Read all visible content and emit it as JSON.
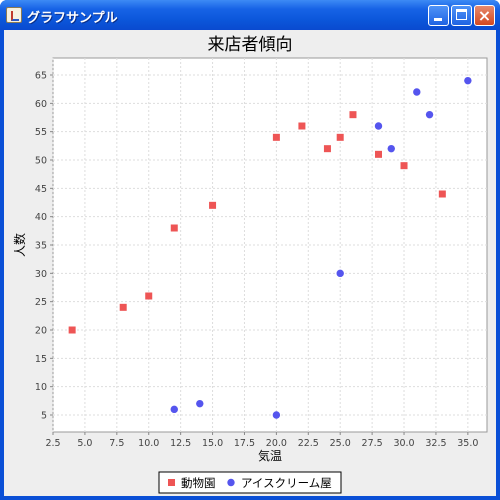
{
  "window": {
    "title": "グラフサンプル",
    "controls": {
      "minimize": "minimize",
      "maximize": "maximize",
      "close": "close"
    }
  },
  "chart_data": {
    "type": "scatter",
    "title": "来店者傾向",
    "xlabel": "気温",
    "ylabel": "人数",
    "xlim": [
      2.5,
      36.5
    ],
    "ylim": [
      2,
      68
    ],
    "x_ticks": [
      2.5,
      5,
      7.5,
      10,
      12.5,
      15,
      17.5,
      20,
      22.5,
      25,
      27.5,
      30,
      32.5,
      35
    ],
    "x_tick_labels": [
      "2.5",
      "5.0",
      "7.5",
      "10.0",
      "12.5",
      "15.0",
      "17.5",
      "20.0",
      "22.5",
      "25.0",
      "27.5",
      "30.0",
      "32.5",
      "35.0"
    ],
    "y_ticks": [
      5,
      10,
      15,
      20,
      25,
      30,
      35,
      40,
      45,
      50,
      55,
      60,
      65
    ],
    "y_tick_labels": [
      "5",
      "10",
      "15",
      "20",
      "25",
      "30",
      "35",
      "40",
      "45",
      "50",
      "55",
      "60",
      "65"
    ],
    "grid": true,
    "legend_position": "bottom",
    "series": [
      {
        "name": "動物園",
        "marker": "square",
        "color": "#ee5555",
        "points": [
          [
            4,
            20
          ],
          [
            8,
            24
          ],
          [
            10,
            26
          ],
          [
            12,
            38
          ],
          [
            15,
            42
          ],
          [
            20,
            54
          ],
          [
            22,
            56
          ],
          [
            24,
            52
          ],
          [
            25,
            54
          ],
          [
            26,
            58
          ],
          [
            28,
            51
          ],
          [
            30,
            49
          ],
          [
            33,
            44
          ]
        ]
      },
      {
        "name": "アイスクリーム屋",
        "marker": "circle",
        "color": "#5555ee",
        "points": [
          [
            12,
            6
          ],
          [
            14,
            7
          ],
          [
            20,
            5
          ],
          [
            25,
            30
          ],
          [
            28,
            56
          ],
          [
            29,
            52
          ],
          [
            31,
            62
          ],
          [
            32,
            58
          ],
          [
            35,
            64
          ]
        ]
      }
    ]
  }
}
